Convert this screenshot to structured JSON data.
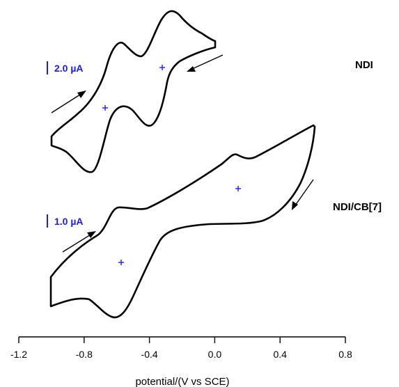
{
  "chart_data": {
    "type": "line",
    "title": "",
    "xlabel": "potential/(V vs SCE)",
    "ylabel": "",
    "xlim": [
      -1.2,
      0.8
    ],
    "x_ticks": [
      "-1.2",
      "-0.8",
      "-0.4",
      "0.0",
      "0.4",
      "0.8"
    ],
    "x_tick_values": [
      -1.2,
      -0.8,
      -0.4,
      0.0,
      0.4,
      0.8
    ],
    "grid": false,
    "series": [
      {
        "name": "NDI",
        "scale_label": "2.0 µA",
        "description_points_x": [
          -1.0,
          -0.75,
          0.0,
          -0.25,
          0.0
        ],
        "midpoints_x": [
          -0.68,
          -0.33
        ]
      },
      {
        "name": "NDI/CB[7]",
        "scale_label": "1.0 µA",
        "description_points_x": [
          -1.0,
          -0.62,
          0.6,
          0.1
        ],
        "midpoints_x": [
          -0.58,
          0.14
        ]
      }
    ]
  }
}
